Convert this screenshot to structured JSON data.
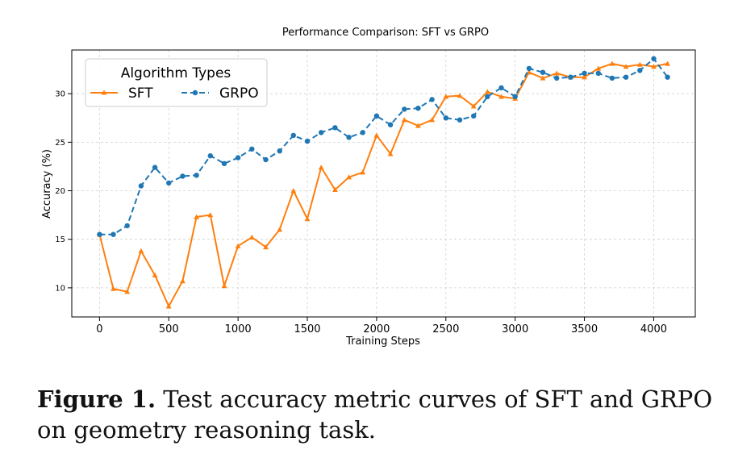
{
  "chart_data": {
    "type": "line",
    "title": "Performance Comparison: SFT vs GRPO",
    "xlabel": "Training Steps",
    "ylabel": "Accuracy (%)",
    "xlim": [
      -200,
      4300
    ],
    "ylim": [
      7,
      34.5
    ],
    "xticks": [
      0,
      500,
      1000,
      1500,
      2000,
      2500,
      3000,
      3500,
      4000
    ],
    "yticks": [
      10,
      15,
      20,
      25,
      30
    ],
    "grid": true,
    "legend": {
      "title": "Algorithm Types",
      "placement": "top-left"
    },
    "x": [
      0,
      100,
      200,
      300,
      400,
      500,
      600,
      700,
      800,
      900,
      1000,
      1100,
      1200,
      1300,
      1400,
      1500,
      1600,
      1700,
      1800,
      1900,
      2000,
      2100,
      2200,
      2300,
      2400,
      2500,
      2600,
      2700,
      2800,
      2900,
      3000,
      3100,
      3200,
      3300,
      3400,
      3500,
      3600,
      3700,
      3800,
      3900,
      4000,
      4100
    ],
    "series": [
      {
        "name": "SFT",
        "color": "#ff7f0e",
        "linestyle": "solid",
        "marker": "triangle",
        "values": [
          15.5,
          9.9,
          9.6,
          13.8,
          11.3,
          8.1,
          10.7,
          17.3,
          17.5,
          10.2,
          14.3,
          15.2,
          14.2,
          16.0,
          20.0,
          17.1,
          22.4,
          20.1,
          21.4,
          21.9,
          25.7,
          23.8,
          27.3,
          26.7,
          27.3,
          29.7,
          29.8,
          28.7,
          30.2,
          29.7,
          29.5,
          32.2,
          31.6,
          32.1,
          31.7,
          31.7,
          32.6,
          33.1,
          32.8,
          33.0,
          32.8,
          33.1
        ]
      },
      {
        "name": "GRPO",
        "color": "#1f77b4",
        "linestyle": "dashed",
        "marker": "circle",
        "values": [
          15.5,
          15.5,
          16.4,
          20.5,
          22.4,
          20.8,
          21.5,
          21.6,
          23.6,
          22.8,
          23.4,
          24.3,
          23.2,
          24.1,
          25.7,
          25.1,
          26.0,
          26.5,
          25.5,
          26.0,
          27.7,
          26.8,
          28.4,
          28.5,
          29.4,
          27.5,
          27.3,
          27.7,
          29.7,
          30.6,
          29.7,
          32.6,
          32.2,
          31.6,
          31.7,
          32.1,
          32.1,
          31.6,
          31.7,
          32.4,
          33.6,
          31.7
        ]
      }
    ]
  },
  "caption": {
    "label": "Figure 1.",
    "text": " Test accuracy metric curves of SFT and GRPO on geometry reasoning task."
  }
}
